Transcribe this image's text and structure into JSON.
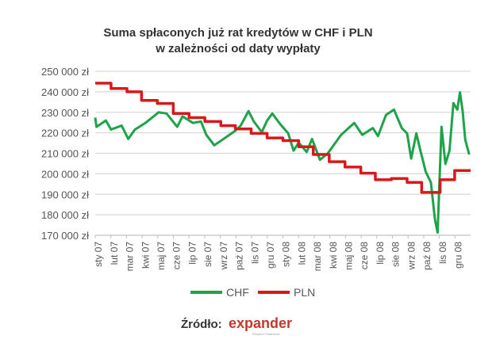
{
  "chart_data": {
    "type": "line",
    "title": "Suma spłaconych  już rat kredytów w CHF i PLN",
    "subtitle": "w zależności od daty wypłaty",
    "xlabel": "",
    "ylabel": "",
    "ylim": [
      170000,
      250000
    ],
    "xlim_months": [
      0,
      24
    ],
    "grid": true,
    "legend_position": "bottom",
    "yticks": [
      170000,
      180000,
      190000,
      200000,
      210000,
      220000,
      230000,
      240000,
      250000
    ],
    "ytick_labels": [
      "170 000 zł",
      "180 000 zł",
      "190 000 zł",
      "200 000 zł",
      "210 000 zł",
      "220 000 zł",
      "230 000 zł",
      "240 000 zł",
      "250 000 zł"
    ],
    "xtick_labels": [
      "sty 07",
      "lut 07",
      "mar 07",
      "kwi 07",
      "maj 07",
      "cze 07",
      "lip 07",
      "sie 07",
      "wrz 07",
      "paź 07",
      "lis 07",
      "gru 07",
      "sty 08",
      "lut 08",
      "mar 08",
      "kwi 08",
      "maj 08",
      "cze 08",
      "lip 08",
      "sie 08",
      "wrz 08",
      "paź 08",
      "lis 08",
      "gru 08"
    ],
    "series": [
      {
        "name": "CHF",
        "color": "#1fa34a",
        "step": false,
        "x": [
          0,
          0.08,
          0.68,
          1.01,
          1.69,
          2.11,
          2.54,
          3.21,
          4.06,
          4.56,
          5.24,
          5.58,
          6.25,
          6.76,
          7.1,
          7.61,
          8.11,
          8.96,
          9.3,
          9.8,
          10.14,
          10.65,
          10.99,
          11.32,
          11.83,
          12.34,
          12.68,
          13.01,
          13.52,
          13.86,
          14.37,
          14.87,
          15.72,
          16.56,
          17.07,
          17.75,
          18.08,
          18.59,
          19.1,
          19.6,
          19.94,
          20.2,
          20.53,
          20.79,
          21.13,
          21.46,
          21.72,
          21.89,
          22.14,
          22.39,
          22.65,
          22.9,
          23.15,
          23.32,
          23.49,
          23.66,
          23.91
        ],
        "y": [
          227400,
          222900,
          226000,
          221600,
          223500,
          217000,
          221600,
          224800,
          230000,
          229400,
          222900,
          228000,
          224800,
          225500,
          219000,
          213900,
          216500,
          221000,
          223500,
          230600,
          225500,
          220300,
          226000,
          229400,
          224200,
          219700,
          211300,
          215200,
          210600,
          217000,
          206800,
          210000,
          219000,
          224800,
          219000,
          222300,
          218400,
          228700,
          231300,
          222300,
          219700,
          207400,
          219700,
          211300,
          201000,
          195800,
          177700,
          171300,
          222900,
          204800,
          211300,
          234500,
          231300,
          239700,
          230600,
          216500,
          209400
        ]
      },
      {
        "name": "PLN",
        "color": "#d7191c",
        "step": true,
        "x": [
          0,
          1.01,
          2.03,
          2.96,
          3.97,
          4.99,
          6.0,
          7.01,
          8.03,
          8.96,
          9.97,
          10.99,
          12.0,
          13.01,
          13.94,
          14.96,
          15.97,
          16.98,
          17.91,
          18.93,
          19.94,
          20.87,
          22.05,
          22.98
        ],
        "y": [
          244200,
          241600,
          240000,
          235800,
          234300,
          229400,
          227400,
          225500,
          223500,
          221900,
          219700,
          217500,
          216200,
          213200,
          209400,
          205900,
          203300,
          200300,
          197100,
          197700,
          195800,
          190900,
          197100,
          201600
        ]
      }
    ]
  },
  "source": {
    "label": "Źródło:",
    "logo_text": "expander",
    "logo_tagline": "Eksperci Finansowi"
  }
}
